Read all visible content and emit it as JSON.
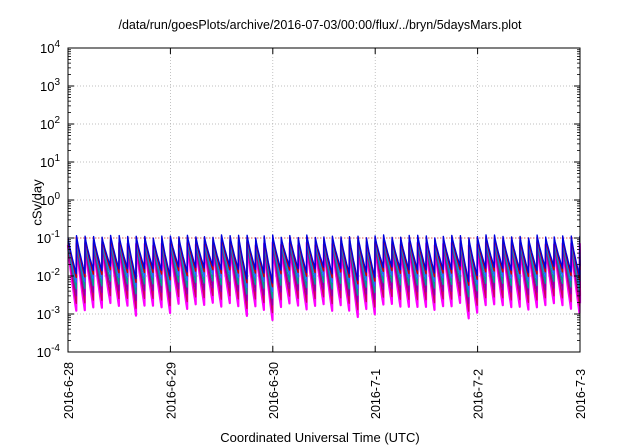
{
  "chart_data": {
    "type": "line",
    "title": "/data/run/goesPlots/archive/2016-07-03/00:00/flux/../bryn/5daysMars.plot",
    "xlabel": "Coordinated Universal Time (UTC)",
    "ylabel": "cSv/day",
    "yscale": "log",
    "ylim": [
      0.0001,
      10000
    ],
    "xlim": [
      "2016-06-28",
      "2016-07-03"
    ],
    "x_ticks": [
      "2016-6-28",
      "2016-6-29",
      "2016-6-30",
      "2016-7-1",
      "2016-7-2",
      "2016-7-3"
    ],
    "y_ticks": [
      {
        "base": "10",
        "exp": "-4"
      },
      {
        "base": "10",
        "exp": "-3"
      },
      {
        "base": "10",
        "exp": "-2"
      },
      {
        "base": "10",
        "exp": "-1"
      },
      {
        "base": "10",
        "exp": "0"
      },
      {
        "base": "10",
        "exp": "1"
      },
      {
        "base": "10",
        "exp": "2"
      },
      {
        "base": "10",
        "exp": "3"
      },
      {
        "base": "10",
        "exp": "4"
      }
    ],
    "grid": true,
    "reference_line": {
      "y": 0.1,
      "color": "#e04040"
    },
    "cycle_period_days": 0.0833,
    "series": [
      {
        "color": "#ff00ff",
        "peak": 0.07,
        "trough": 0.0016
      },
      {
        "color": "#cc0066",
        "peak": 0.075,
        "trough": 0.0025
      },
      {
        "color": "#8800aa",
        "peak": 0.08,
        "trough": 0.004
      },
      {
        "color": "#00a090",
        "peak": 0.085,
        "trough": 0.006
      },
      {
        "color": "#2266ff",
        "peak": 0.09,
        "trough": 0.009
      },
      {
        "color": "#cc0000",
        "peak": 0.1,
        "trough": 0.012
      },
      {
        "color": "#0000dd",
        "peak": 0.11,
        "trough": 0.015
      }
    ]
  }
}
